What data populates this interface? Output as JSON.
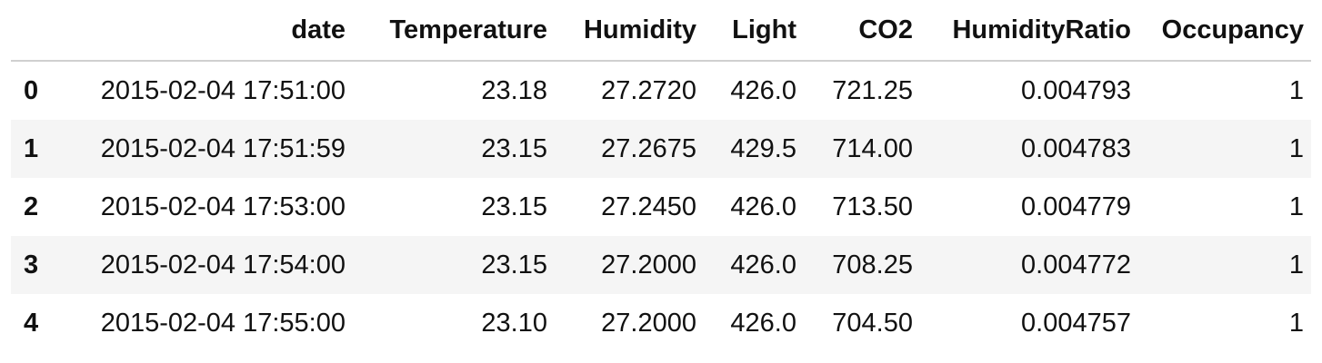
{
  "table": {
    "columns": [
      "",
      "date",
      "Temperature",
      "Humidity",
      "Light",
      "CO2",
      "HumidityRatio",
      "Occupancy"
    ],
    "rows": [
      {
        "index": "0",
        "date": "2015-02-04 17:51:00",
        "Temperature": "23.18",
        "Humidity": "27.2720",
        "Light": "426.0",
        "CO2": "721.25",
        "HumidityRatio": "0.004793",
        "Occupancy": "1"
      },
      {
        "index": "1",
        "date": "2015-02-04 17:51:59",
        "Temperature": "23.15",
        "Humidity": "27.2675",
        "Light": "429.5",
        "CO2": "714.00",
        "HumidityRatio": "0.004783",
        "Occupancy": "1"
      },
      {
        "index": "2",
        "date": "2015-02-04 17:53:00",
        "Temperature": "23.15",
        "Humidity": "27.2450",
        "Light": "426.0",
        "CO2": "713.50",
        "HumidityRatio": "0.004779",
        "Occupancy": "1"
      },
      {
        "index": "3",
        "date": "2015-02-04 17:54:00",
        "Temperature": "23.15",
        "Humidity": "27.2000",
        "Light": "426.0",
        "CO2": "708.25",
        "HumidityRatio": "0.004772",
        "Occupancy": "1"
      },
      {
        "index": "4",
        "date": "2015-02-04 17:55:00",
        "Temperature": "23.10",
        "Humidity": "27.2000",
        "Light": "426.0",
        "CO2": "704.50",
        "HumidityRatio": "0.004757",
        "Occupancy": "1"
      }
    ]
  },
  "colors": {
    "header_border": "#d0d0d0",
    "alt_row_background": "#f5f5f5",
    "text": "#111111"
  }
}
